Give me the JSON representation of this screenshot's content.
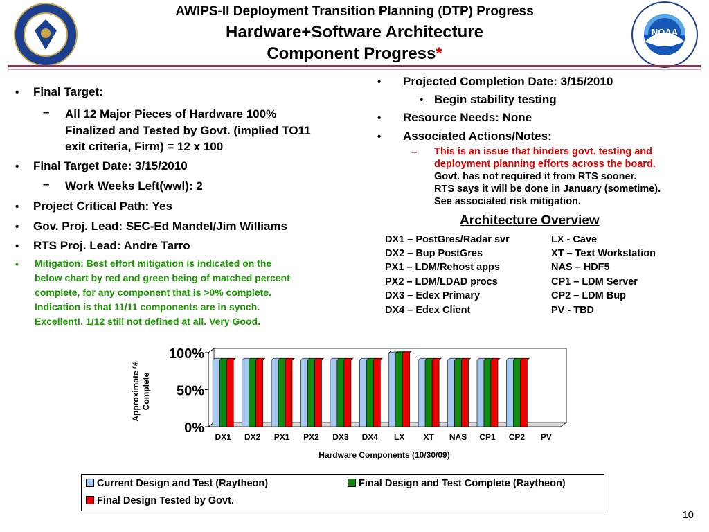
{
  "header": {
    "line1": "AWIPS-II Deployment Transition Planning (DTP) Progress",
    "line2": "Hardware+Software Architecture",
    "line3": "Component Progress",
    "star": "*"
  },
  "left_column": {
    "final_target_label": "Final Target:",
    "final_target_detail_1": "All 12 Major Pieces of Hardware 100%",
    "final_target_detail_2": "Finalized and Tested by Govt. (implied TO11",
    "final_target_detail_3": "exit criteria, Firm) = 12 x 100",
    "final_target_date": "Final Target Date: 3/15/2010",
    "work_weeks_left": "Work Weeks Left(wwl): 2",
    "critical_path": "Project Critical Path: Yes",
    "gov_lead": "Gov. Proj. Lead:  SEC-Ed Mandel/Jim Williams",
    "rts_lead": "RTS Proj. Lead:  Andre Tarro",
    "mitigation_1": "Mitigation:  Best effort mitigation is indicated on the",
    "mitigation_2": "below chart by red and green being of matched percent",
    "mitigation_3": "complete, for any component that is >0% complete.",
    "mitigation_4": "Indication is that 11/11 components are in synch.",
    "mitigation_5": "Excellent!.  1/12 still not defined at all.  Very Good."
  },
  "right_column": {
    "projected_completion": "Projected Completion Date: 3/15/2010",
    "begin_stability": "Begin stability testing",
    "resource_needs": "Resource Needs: None",
    "associated_actions": "Associated Actions/Notes:",
    "note_red_1": "This is an issue that hinders govt. testing and",
    "note_red_2": "deployment planning efforts across the board.",
    "note_3": "Govt. has not required it from RTS sooner.",
    "note_4": "RTS says it will be done in January (sometime).",
    "note_5": "See associated risk mitigation."
  },
  "architecture": {
    "title": "Architecture Overview",
    "left": [
      "DX1 – PostGres/Radar svr",
      "DX2 – Bup PostGres",
      "PX1 – LDM/Rehost apps",
      "PX2 – LDM/LDAD procs",
      "DX3 – Edex Primary",
      "DX4 – Edex Client"
    ],
    "right": [
      "LX - Cave",
      "XT – Text Workstation",
      "NAS – HDF5",
      "CP1 – LDM Server",
      "CP2 – LDM Bup",
      "PV - TBD"
    ]
  },
  "chart_data": {
    "type": "bar",
    "categories": [
      "DX1",
      "DX2",
      "PX1",
      "PX2",
      "DX3",
      "DX4",
      "LX",
      "XT",
      "NAS",
      "CP1",
      "CP2",
      "PV"
    ],
    "series": [
      {
        "name": "Current Design and Test (Raytheon)",
        "color": "#a6c8ee",
        "values": [
          90,
          90,
          90,
          90,
          90,
          90,
          100,
          90,
          90,
          90,
          90,
          0
        ]
      },
      {
        "name": "Final Design and Test Complete (Raytheon)",
        "color": "#118a11",
        "values": [
          90,
          90,
          90,
          90,
          90,
          90,
          100,
          90,
          90,
          90,
          90,
          0
        ]
      },
      {
        "name": "Final Design Tested by Govt.",
        "color": "#ee0000",
        "values": [
          90,
          90,
          90,
          90,
          90,
          90,
          100,
          90,
          90,
          90,
          90,
          0
        ]
      }
    ],
    "yticks": [
      "0%",
      "50%",
      "100%"
    ],
    "ylim": [
      0,
      100
    ],
    "ylabel_line1": "Approximate %",
    "ylabel_line2": "Complete",
    "xlabel": "Hardware Components (10/30/09)",
    "legend_position": "bottom",
    "grid": false
  },
  "page_number": "10"
}
